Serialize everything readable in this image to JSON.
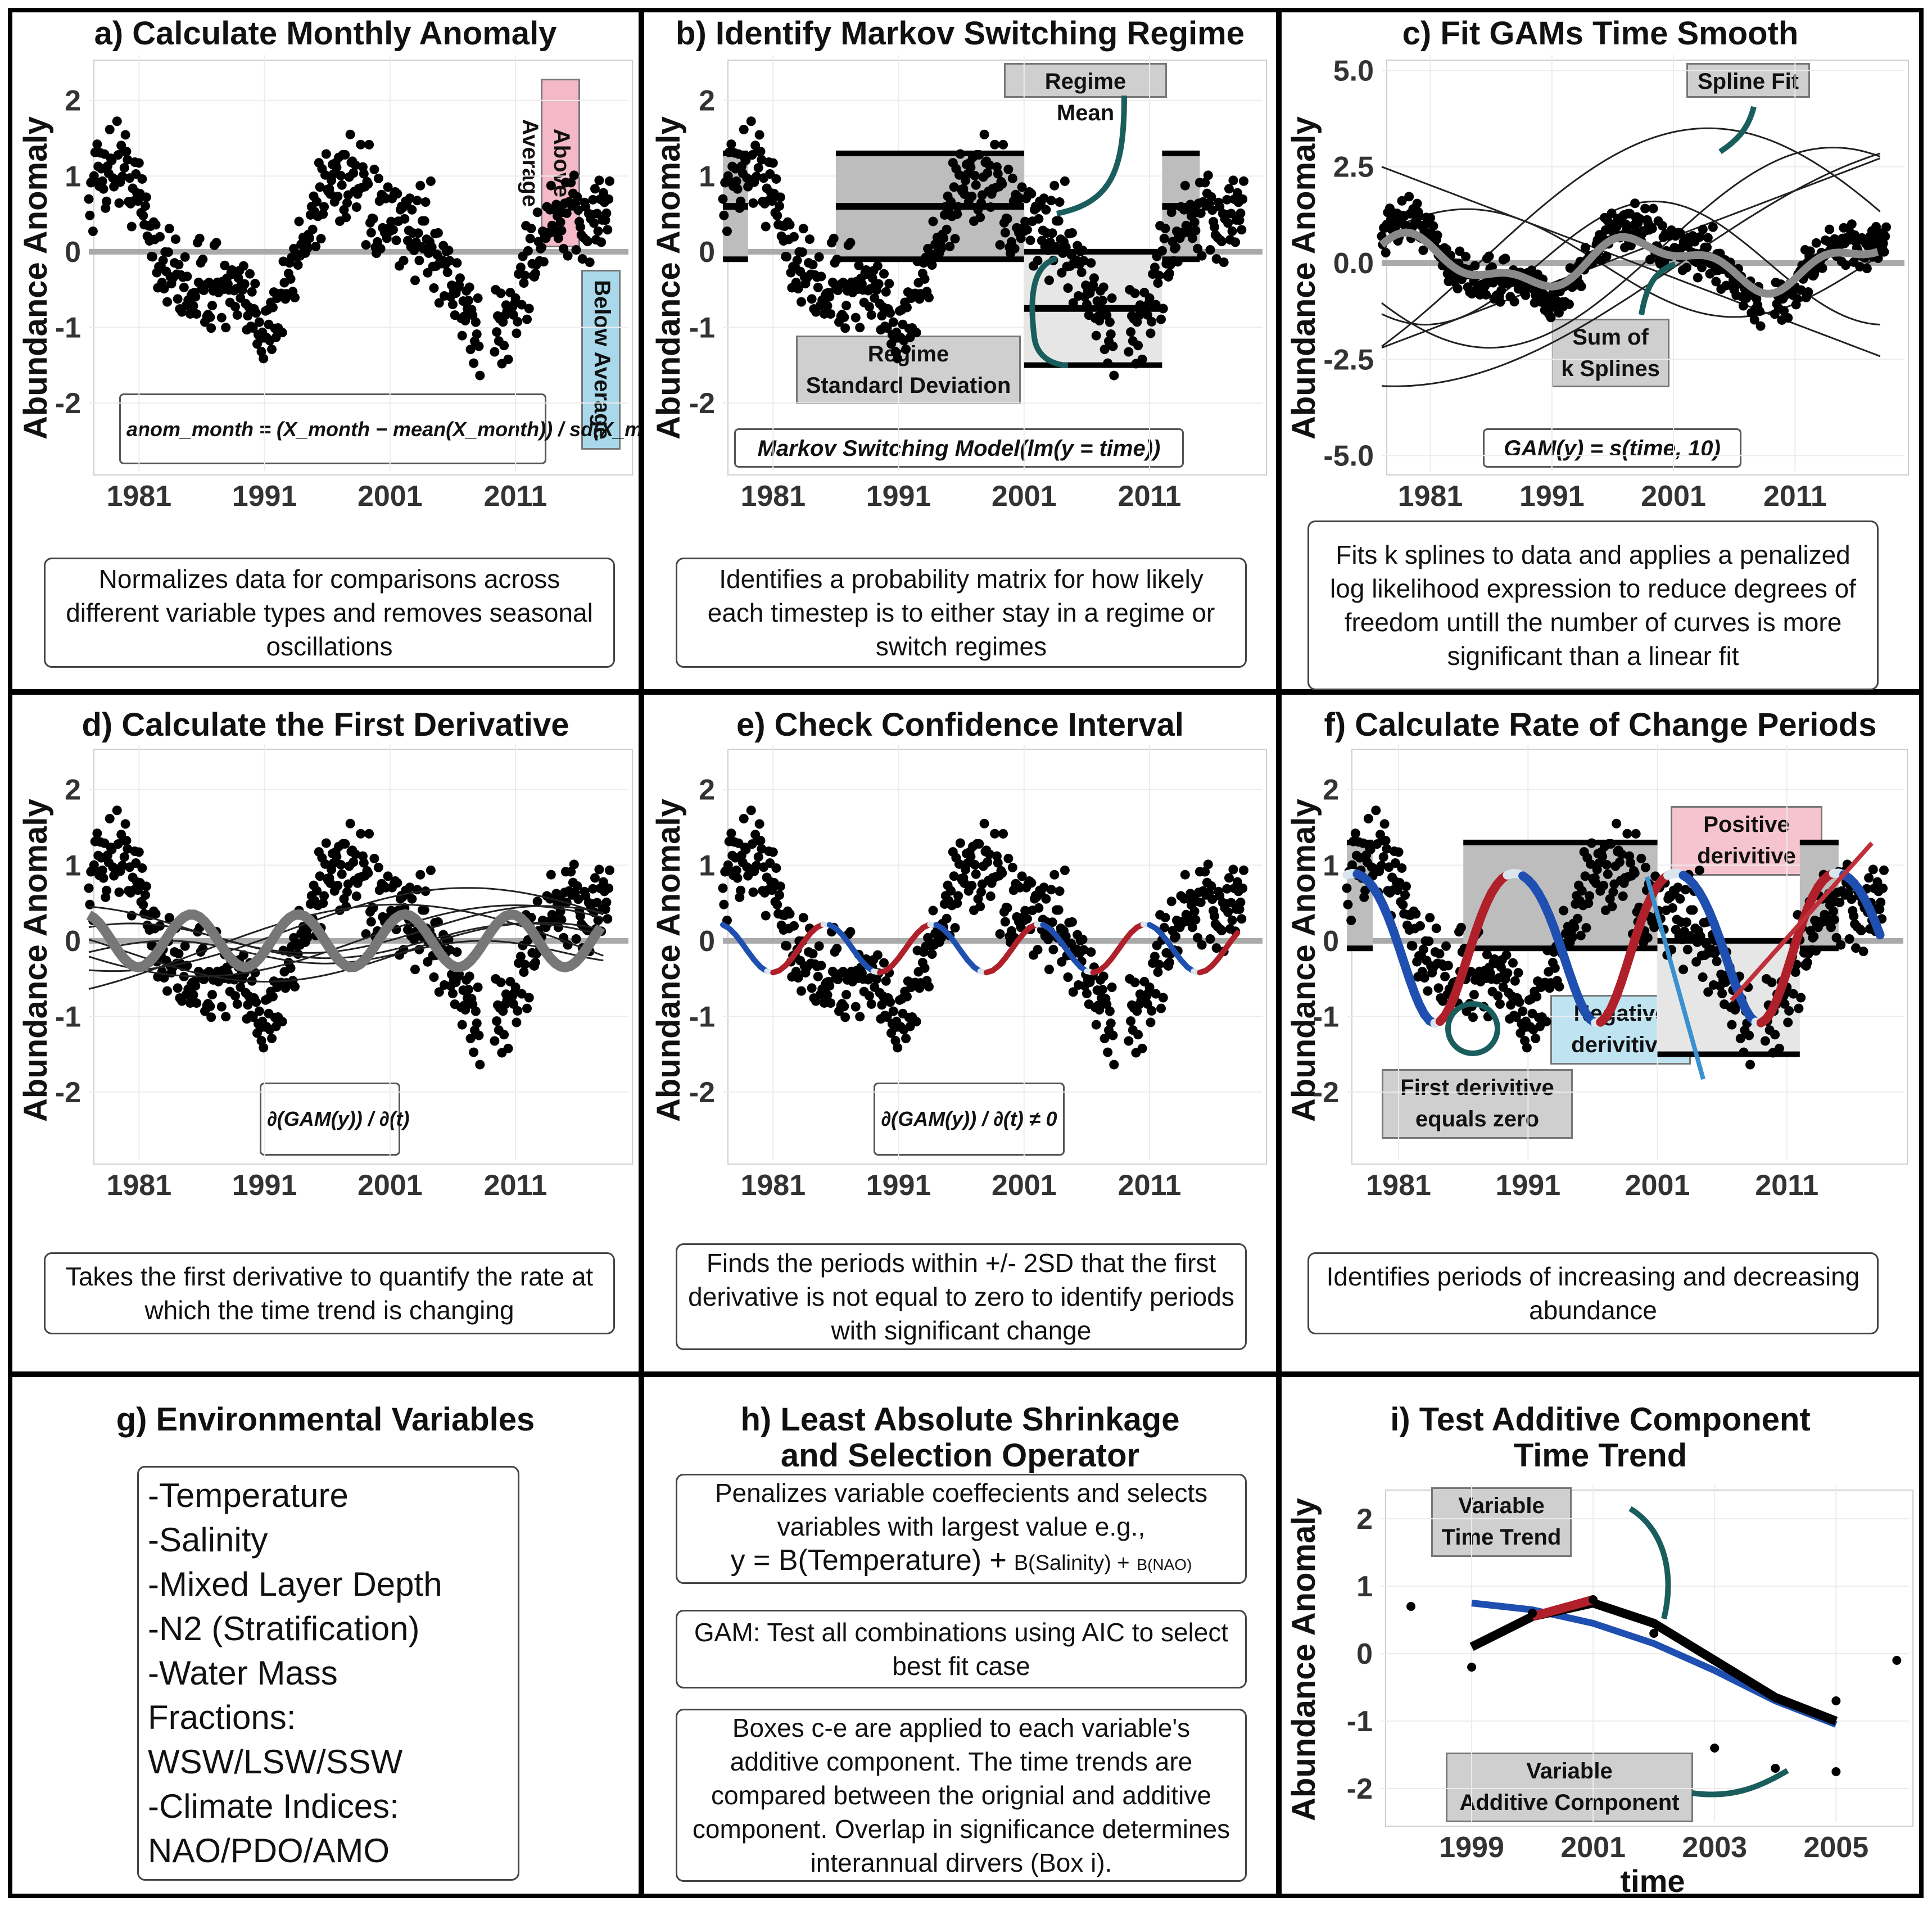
{
  "panels": {
    "a": {
      "title": "a) Calculate Monthly Anomaly",
      "desc": "Normalizes data for comparisons across different variable types and removes seasonal oscillations",
      "formula": "anom_month = (X_month − mean(X_month)) / sd(X_month)",
      "above_label": "Above Average",
      "below_label": "Below Average"
    },
    "b": {
      "title": "b) Identify Markov Switching Regime",
      "desc": "Identifies a probability matrix for how likely each timestep is to either stay in a regime or switch regimes",
      "tag_mean": "Regime Mean",
      "tag_sd_1": "Regime",
      "tag_sd_2": "Standard Deviation",
      "formula": "Markov Switching Model(lm(y = time))"
    },
    "c": {
      "title": "c) Fit GAMs Time Smooth",
      "desc": "Fits k splines to data and applies a penalized log likelihood expression to reduce degrees of freedom untill the number of curves is more significant than a linear fit",
      "tag_spline": "Spline Fit",
      "tag_sum_1": "Sum of",
      "tag_sum_2": "k Splines",
      "formula": "GAM(y) = s(time, 10)"
    },
    "d": {
      "title": "d) Calculate the First Derivative",
      "desc": "Takes the first derivative to quantify the rate at which the time trend is changing",
      "formula": "∂(GAM(y)) / ∂(t)"
    },
    "e": {
      "title": "e) Check Confidence Interval",
      "desc": "Finds the periods within +/- 2SD that the first derivative is not equal to zero to identify periods with significant change",
      "formula": "∂(GAM(y)) / ∂(t) ≠ 0"
    },
    "f": {
      "title": "f) Calculate Rate of Change Periods",
      "desc": "Identifies periods of increasing and decreasing abundance",
      "tag_pos_1": "Positive",
      "tag_pos_2": "derivitive",
      "tag_neg_1": "Negative",
      "tag_neg_2": "derivitive",
      "tag_zero_1": "First derivitive",
      "tag_zero_2": "equals zero"
    },
    "g": {
      "title": "g) Environmental Variables",
      "items": [
        "-Temperature",
        "-Salinity",
        "-Mixed Layer Depth",
        "-N2 (Stratification)",
        "-Water Mass",
        "Fractions:",
        "WSW/LSW/SSW",
        "-Climate Indices:",
        "NAO/PDO/AMO"
      ]
    },
    "h": {
      "title_1": "h) Least Absolute Shrinkage",
      "title_2": "and Selection Operator",
      "box1_line1": "Penalizes variable coeffecients and selects",
      "box1_line2": "variables with largest value e.g.,",
      "box1_eq_a": "y =  B(Temperature) +",
      "box1_eq_b": "B(Salinity) +",
      "box1_eq_c": "B(NAO)",
      "box2": "GAM: Test all combinations using AIC to select best fit case",
      "box3": "Boxes c-e are applied to each variable's additive component. The time trends are compared between the orignial and additive component. Overlap in significance determines interannual dirvers (Box i)."
    },
    "i": {
      "title_1": "i) Test Additive Component",
      "title_2": "Time Trend",
      "tag_var_1": "Variable",
      "tag_var_2": "Time Trend",
      "tag_add_1": "Variable",
      "tag_add_2": "Additive Component",
      "xlabel": "time"
    }
  },
  "axes": {
    "ylabel": "Abundance Anomaly",
    "x_ticks": [
      "1981",
      "1991",
      "2001",
      "2011"
    ],
    "y_ticks_std": [
      "2",
      "1",
      "0",
      "-1",
      "-2"
    ],
    "y_ticks_c": [
      "5.0",
      "2.5",
      "0.0",
      "-2.5",
      "-5.0"
    ],
    "x_ticks_i": [
      "1999",
      "2001",
      "2003",
      "2005"
    ],
    "y_ticks_i": [
      "2",
      "1",
      "0",
      "-1",
      "-2"
    ]
  },
  "chart_data": [
    {
      "type": "scatter",
      "panel": "a",
      "x_range": [
        1977,
        2020
      ],
      "ylim": [
        -2.9,
        2.6
      ],
      "series": [
        {
          "values": "monthly anomaly points 1977–2018"
        }
      ],
      "reference_line": 0
    },
    {
      "type": "scatter",
      "panel": "b",
      "regimes": [
        {
          "start": 1977,
          "end": 1979,
          "mean": 0.6,
          "sd_band": [
            -0.1,
            1.3
          ]
        },
        {
          "start": 1986,
          "end": 2001,
          "mean": 0.6,
          "sd_band": [
            -0.1,
            1.3
          ]
        },
        {
          "start": 2001,
          "end": 2012,
          "mean": -0.75,
          "sd_band": [
            -1.5,
            0
          ]
        },
        {
          "start": 2012,
          "end": 2015,
          "mean": 0.6,
          "sd_band": [
            -0.1,
            1.3
          ]
        }
      ]
    },
    {
      "type": "line",
      "panel": "c",
      "ylim": [
        -5.4,
        5.4
      ],
      "x_range": [
        1977,
        2020
      ]
    },
    {
      "type": "line",
      "panel": "d",
      "ylim": [
        -2.9,
        2.6
      ]
    },
    {
      "type": "line",
      "panel": "e",
      "ylim": [
        -2.9,
        2.6
      ]
    },
    {
      "type": "line",
      "panel": "f",
      "ylim": [
        -2.9,
        2.6
      ]
    },
    {
      "type": "line",
      "panel": "i",
      "x_range": [
        1997.5,
        2006.2
      ],
      "ylim": [
        -2.5,
        2.5
      ],
      "x": [
        1999,
        2000,
        2001,
        2002,
        2003,
        2004,
        2005
      ],
      "trend": [
        0.75,
        0.65,
        0.45,
        0.15,
        -0.25,
        -0.7,
        -1.05
      ],
      "additive": [
        0.1,
        0.55,
        0.75,
        0.45,
        -0.1,
        -0.65,
        -1.0
      ]
    }
  ],
  "colors": {
    "neg": "#1f4fb0",
    "pos": "#b0202a",
    "pale": "#d9e6ee",
    "grey_line": "#aaaaaa",
    "arrow": "#1a5d5d"
  }
}
